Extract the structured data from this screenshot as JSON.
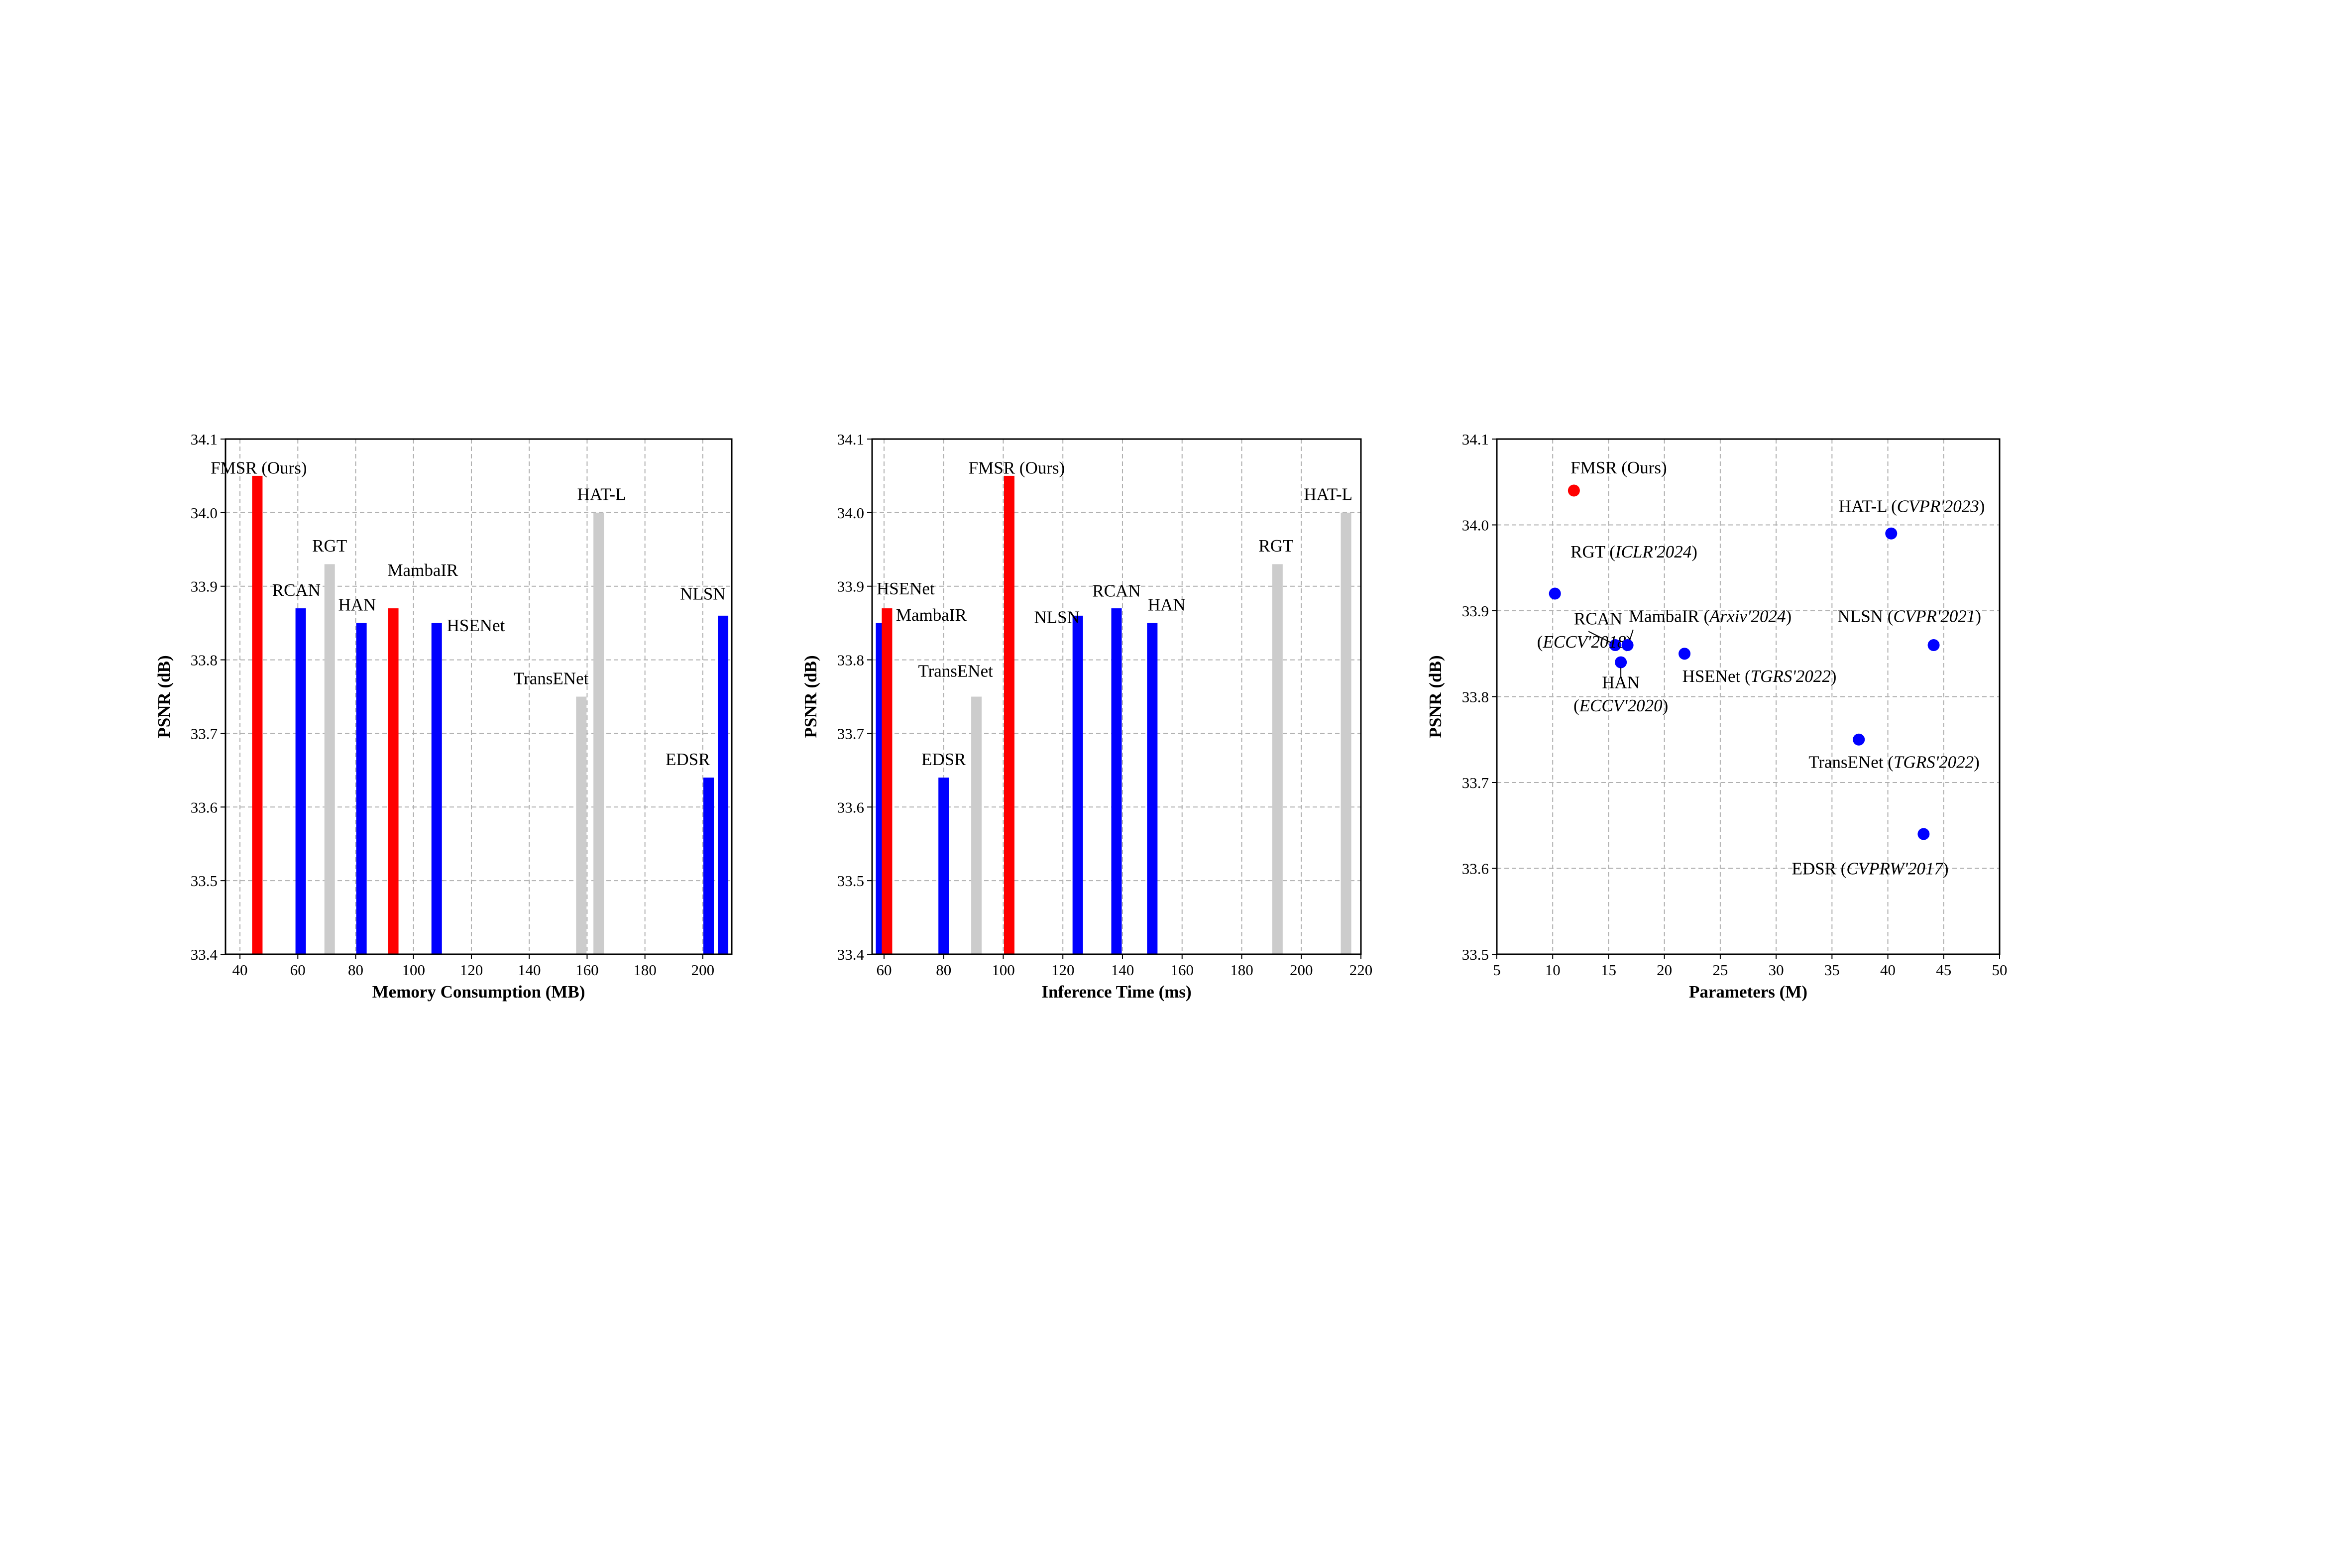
{
  "chart_data": [
    {
      "type": "bar",
      "xlabel": "Memory Consumption (MB)",
      "ylabel": "PSNR (dB)",
      "xlim": [
        35,
        210
      ],
      "ylim": [
        33.4,
        34.1
      ],
      "xticks": [
        "40",
        "60",
        "80",
        "100",
        "120",
        "140",
        "160",
        "180",
        "200"
      ],
      "yticks": [
        "33.4",
        "33.5",
        "33.6",
        "33.7",
        "33.8",
        "33.9",
        "34.0",
        "34.1"
      ],
      "grid": true,
      "points": [
        {
          "label": "FMSR (Ours)",
          "x": 46,
          "y": 34.05,
          "color": "#ff0000",
          "anchor": "middle",
          "ldx": 0.5,
          "ldy": 0.003
        },
        {
          "label": "RCAN",
          "x": 61,
          "y": 33.87,
          "color": "#0000ff",
          "anchor": "middle",
          "ldx": -1.5,
          "ldy": 0.017
        },
        {
          "label": "RGT",
          "x": 71,
          "y": 33.93,
          "color": "#cccccc",
          "anchor": "middle",
          "ldx": 0,
          "ldy": 0.017
        },
        {
          "label": "HAN",
          "x": 82,
          "y": 33.85,
          "color": "#0000ff",
          "anchor": "middle",
          "ldx": -1.5,
          "ldy": 0.017
        },
        {
          "label": "MambaIR",
          "x": 93,
          "y": 33.87,
          "color": "#ff0000",
          "anchor": "start",
          "ldx": -2,
          "ldy": 0.044
        },
        {
          "label": "HSENet",
          "x": 108,
          "y": 33.85,
          "color": "#0000ff",
          "anchor": "start",
          "ldx": 3.5,
          "ldy": -0.011
        },
        {
          "label": "TransENet",
          "x": 158,
          "y": 33.75,
          "color": "#cccccc",
          "anchor": "end",
          "ldx": 2.5,
          "ldy": 0.017
        },
        {
          "label": "HAT-L",
          "x": 164,
          "y": 34.0,
          "color": "#cccccc",
          "anchor": "middle",
          "ldx": 1,
          "ldy": 0.017
        },
        {
          "label": "EDSR",
          "x": 202,
          "y": 33.64,
          "color": "#0000ff",
          "anchor": "end",
          "ldx": 0.5,
          "ldy": 0.017
        },
        {
          "label": "NLSN",
          "x": 207,
          "y": 33.86,
          "color": "#0000ff",
          "anchor": "middle",
          "ldx": -7,
          "ldy": 0.022
        }
      ]
    },
    {
      "type": "bar",
      "xlabel": "Inference Time (ms)",
      "ylabel": "PSNR (dB)",
      "xlim": [
        56,
        220
      ],
      "ylim": [
        33.4,
        34.1
      ],
      "xticks": [
        "60",
        "80",
        "100",
        "120",
        "140",
        "160",
        "180",
        "200",
        "220"
      ],
      "yticks": [
        "33.4",
        "33.5",
        "33.6",
        "33.7",
        "33.8",
        "33.9",
        "34.0",
        "34.1"
      ],
      "grid": true,
      "points": [
        {
          "label": "HSENet",
          "x": 59,
          "y": 33.85,
          "color": "#0000ff",
          "anchor": "start",
          "ldx": -1.5,
          "ldy": 0.039
        },
        {
          "label": "MambaIR",
          "x": 61,
          "y": 33.87,
          "color": "#ff0000",
          "anchor": "start",
          "ldx": 3,
          "ldy": -0.017
        },
        {
          "label": "EDSR",
          "x": 80,
          "y": 33.64,
          "color": "#0000ff",
          "anchor": "middle",
          "ldx": 0,
          "ldy": 0.017
        },
        {
          "label": "TransENet",
          "x": 91,
          "y": 33.75,
          "color": "#cccccc",
          "anchor": "middle",
          "ldx": -7,
          "ldy": 0.027
        },
        {
          "label": "FMSR (Ours)",
          "x": 102,
          "y": 34.05,
          "color": "#ff0000",
          "anchor": "middle",
          "ldx": 2.5,
          "ldy": 0.003
        },
        {
          "label": "NLSN",
          "x": 125,
          "y": 33.86,
          "color": "#0000ff",
          "anchor": "middle",
          "ldx": -7,
          "ldy": -0.01
        },
        {
          "label": "RCAN",
          "x": 138,
          "y": 33.87,
          "color": "#0000ff",
          "anchor": "middle",
          "ldx": 0,
          "ldy": 0.016
        },
        {
          "label": "HAN",
          "x": 150,
          "y": 33.85,
          "color": "#0000ff",
          "anchor": "start",
          "ldx": -1.5,
          "ldy": 0.017
        },
        {
          "label": "RGT",
          "x": 192,
          "y": 33.93,
          "color": "#cccccc",
          "anchor": "middle",
          "ldx": -0.5,
          "ldy": 0.017
        },
        {
          "label": "HAT-L",
          "x": 215,
          "y": 34.0,
          "color": "#cccccc",
          "anchor": "middle",
          "ldx": -6,
          "ldy": 0.017
        }
      ]
    },
    {
      "type": "scatter",
      "xlabel": "Parameters (M)",
      "ylabel": "PSNR (dB)",
      "xlim": [
        5,
        50
      ],
      "ylim": [
        33.5,
        34.1
      ],
      "xticks": [
        "5",
        "10",
        "15",
        "20",
        "25",
        "30",
        "35",
        "40",
        "45",
        "50"
      ],
      "yticks": [
        "33.5",
        "33.6",
        "33.7",
        "33.8",
        "33.9",
        "34.0",
        "34.1"
      ],
      "grid": true,
      "points": [
        {
          "label": "FMSR (Ours)",
          "x": 11.9,
          "y": 34.04,
          "color": "#ff0000",
          "parts": [
            {
              "t": "FMSR (Ours)",
              "i": false
            }
          ],
          "lx": 11.6,
          "ly": 34.06,
          "anchor": "start"
        },
        {
          "label": "RGT (ICLR'2024)",
          "x": 10.2,
          "y": 33.92,
          "color": "#0000ff",
          "parts": [
            {
              "t": "RGT (",
              "i": false
            },
            {
              "t": "ICLR'2024",
              "i": true
            },
            {
              "t": ")",
              "i": false
            }
          ],
          "lx": 11.6,
          "ly": 33.962,
          "anchor": "start"
        },
        {
          "label": "RCAN (ECCV'2018)",
          "x": 15.6,
          "y": 33.86,
          "color": "#0000ff",
          "parts": [
            {
              "t": "RCAN",
              "i": false
            }
          ],
          "lx": 11.9,
          "ly": 33.884,
          "anchor": "start",
          "parts2": [
            {
              "t": "(",
              "i": false
            },
            {
              "t": "ECCV'2018",
              "i": true
            },
            {
              "t": ")",
              "i": false
            }
          ],
          "lx2": 8.6,
          "ly2": 33.857,
          "anchor2": "start",
          "leader": [
            13.2,
            33.876,
            15.2,
            33.863
          ]
        },
        {
          "label": "MambaIR (Arxiv'2024)",
          "x": 16.7,
          "y": 33.86,
          "color": "#0000ff",
          "parts": [
            {
              "t": "MambaIR (",
              "i": false
            },
            {
              "t": "Arxiv'2024",
              "i": true
            },
            {
              "t": ")",
              "i": false
            }
          ],
          "lx": 16.8,
          "ly": 33.887,
          "anchor": "start",
          "leader": [
            17.2,
            33.878,
            16.9,
            33.866
          ]
        },
        {
          "label": "HAN (ECCV'2020)",
          "x": 16.1,
          "y": 33.84,
          "color": "#0000ff",
          "parts": [
            {
              "t": "HAN",
              "i": false
            }
          ],
          "lx": 16.1,
          "ly": 33.81,
          "anchor": "middle",
          "parts2": [
            {
              "t": "(",
              "i": false
            },
            {
              "t": "ECCV'2020",
              "i": true
            },
            {
              "t": ")",
              "i": false
            }
          ],
          "lx2": 16.1,
          "ly2": 33.783,
          "anchor2": "middle",
          "leader": [
            16.1,
            33.834,
            16.1,
            33.822
          ]
        },
        {
          "label": "HSENet (TGRS'2022)",
          "x": 21.8,
          "y": 33.85,
          "color": "#0000ff",
          "parts": [
            {
              "t": "HSENet (",
              "i": false
            },
            {
              "t": "TGRS'2022",
              "i": true
            },
            {
              "t": ")",
              "i": false
            }
          ],
          "lx": 21.6,
          "ly": 33.817,
          "anchor": "start"
        },
        {
          "label": "HAT-L (CVPR'2023)",
          "x": 40.3,
          "y": 33.99,
          "color": "#0000ff",
          "parts": [
            {
              "t": "HAT-L (",
              "i": false
            },
            {
              "t": "CVPR'2023",
              "i": true
            },
            {
              "t": ")",
              "i": false
            }
          ],
          "lx": 35.6,
          "ly": 34.015,
          "anchor": "start"
        },
        {
          "label": "NLSN (CVPR'2021)",
          "x": 44.1,
          "y": 33.86,
          "color": "#0000ff",
          "parts": [
            {
              "t": "NLSN (",
              "i": false
            },
            {
              "t": "CVPR'2021",
              "i": true
            },
            {
              "t": ")",
              "i": false
            }
          ],
          "lx": 35.5,
          "ly": 33.887,
          "anchor": "start"
        },
        {
          "label": "TransENet (TGRS'2022)",
          "x": 37.4,
          "y": 33.75,
          "color": "#0000ff",
          "parts": [
            {
              "t": "TransENet (",
              "i": false
            },
            {
              "t": "TGRS'2022",
              "i": true
            },
            {
              "t": ")",
              "i": false
            }
          ],
          "lx": 32.9,
          "ly": 33.717,
          "anchor": "start"
        },
        {
          "label": "EDSR (CVPRW'2017)",
          "x": 43.2,
          "y": 33.64,
          "color": "#0000ff",
          "parts": [
            {
              "t": "EDSR (",
              "i": false
            },
            {
              "t": "CVPRW'2017",
              "i": true
            },
            {
              "t": ")",
              "i": false
            }
          ],
          "lx": 31.4,
          "ly": 33.593,
          "anchor": "start"
        }
      ]
    }
  ]
}
